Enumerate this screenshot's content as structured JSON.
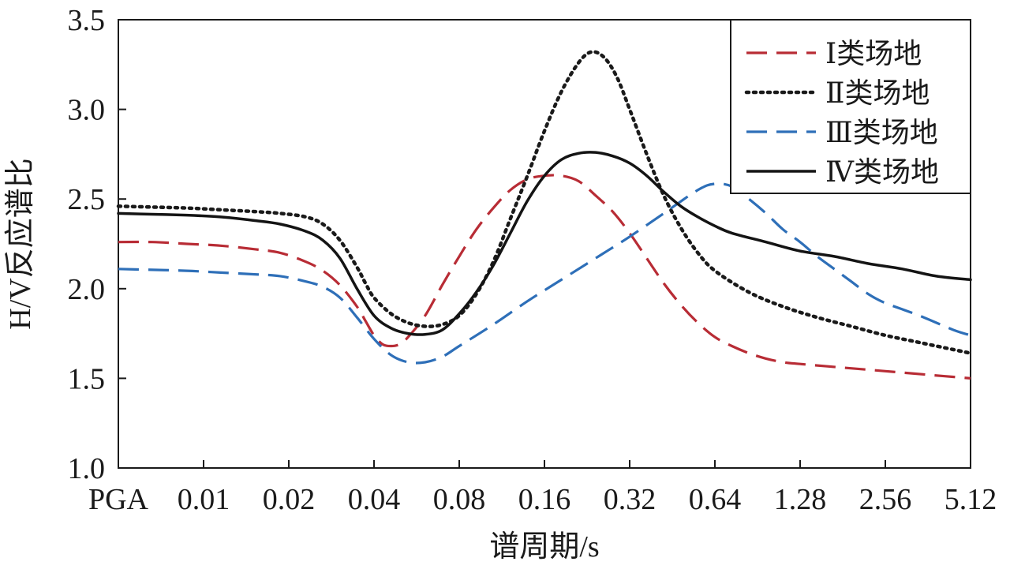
{
  "chart_data": {
    "type": "line",
    "xlabel": "谱周期/s",
    "ylabel": "H/V反应谱比",
    "ylim": [
      1.0,
      3.5
    ],
    "yticks": [
      "1.0",
      "1.5",
      "2.0",
      "2.5",
      "3.0",
      "3.5"
    ],
    "categories": [
      "PGA",
      "0.01",
      "0.02",
      "0.04",
      "0.08",
      "0.16",
      "0.32",
      "0.64",
      "1.28",
      "2.56",
      "5.12"
    ],
    "legend_position": "top-right",
    "grid": false,
    "series": [
      {
        "name": "Ⅰ类场地",
        "color": "#b82c35",
        "style": "dashed",
        "points": [
          [
            0,
            2.26
          ],
          [
            0.4,
            2.26
          ],
          [
            0.8,
            2.25
          ],
          [
            1.2,
            2.24
          ],
          [
            1.6,
            2.22
          ],
          [
            1.9,
            2.2
          ],
          [
            2.2,
            2.15
          ],
          [
            2.4,
            2.1
          ],
          [
            2.6,
            2.02
          ],
          [
            2.8,
            1.9
          ],
          [
            2.9,
            1.82
          ],
          [
            3.0,
            1.74
          ],
          [
            3.1,
            1.69
          ],
          [
            3.2,
            1.68
          ],
          [
            3.3,
            1.69
          ],
          [
            3.4,
            1.73
          ],
          [
            3.6,
            1.85
          ],
          [
            3.8,
            2.02
          ],
          [
            4.0,
            2.18
          ],
          [
            4.2,
            2.33
          ],
          [
            4.4,
            2.45
          ],
          [
            4.6,
            2.55
          ],
          [
            4.8,
            2.61
          ],
          [
            5.0,
            2.63
          ],
          [
            5.2,
            2.63
          ],
          [
            5.4,
            2.6
          ],
          [
            5.6,
            2.52
          ],
          [
            5.8,
            2.43
          ],
          [
            6.0,
            2.31
          ],
          [
            6.2,
            2.17
          ],
          [
            6.4,
            2.03
          ],
          [
            6.6,
            1.91
          ],
          [
            6.8,
            1.81
          ],
          [
            7.0,
            1.73
          ],
          [
            7.2,
            1.68
          ],
          [
            7.4,
            1.64
          ],
          [
            7.6,
            1.61
          ],
          [
            7.8,
            1.59
          ],
          [
            8.0,
            1.58
          ],
          [
            8.5,
            1.56
          ],
          [
            9.0,
            1.54
          ],
          [
            9.5,
            1.52
          ],
          [
            10.0,
            1.5
          ]
        ]
      },
      {
        "name": "Ⅱ类场地",
        "color": "#1a1a1a",
        "style": "dotted",
        "points": [
          [
            0,
            2.46
          ],
          [
            0.4,
            2.455
          ],
          [
            0.8,
            2.45
          ],
          [
            1.2,
            2.44
          ],
          [
            1.6,
            2.43
          ],
          [
            1.9,
            2.42
          ],
          [
            2.2,
            2.4
          ],
          [
            2.4,
            2.36
          ],
          [
            2.6,
            2.27
          ],
          [
            2.8,
            2.12
          ],
          [
            2.9,
            2.03
          ],
          [
            3.0,
            1.95
          ],
          [
            3.2,
            1.86
          ],
          [
            3.4,
            1.81
          ],
          [
            3.6,
            1.79
          ],
          [
            3.8,
            1.8
          ],
          [
            4.0,
            1.85
          ],
          [
            4.2,
            1.97
          ],
          [
            4.4,
            2.15
          ],
          [
            4.6,
            2.39
          ],
          [
            4.8,
            2.63
          ],
          [
            5.0,
            2.88
          ],
          [
            5.2,
            3.1
          ],
          [
            5.4,
            3.26
          ],
          [
            5.55,
            3.32
          ],
          [
            5.7,
            3.29
          ],
          [
            5.85,
            3.18
          ],
          [
            6.0,
            3.0
          ],
          [
            6.2,
            2.75
          ],
          [
            6.4,
            2.52
          ],
          [
            6.6,
            2.34
          ],
          [
            6.8,
            2.2
          ],
          [
            7.0,
            2.1
          ],
          [
            7.4,
            1.98
          ],
          [
            7.8,
            1.9
          ],
          [
            8.2,
            1.84
          ],
          [
            8.6,
            1.79
          ],
          [
            9.0,
            1.74
          ],
          [
            9.4,
            1.7
          ],
          [
            9.8,
            1.66
          ],
          [
            10.0,
            1.64
          ]
        ]
      },
      {
        "name": "Ⅲ类场地",
        "color": "#2e6fb8",
        "style": "dashed",
        "points": [
          [
            0,
            2.11
          ],
          [
            0.4,
            2.105
          ],
          [
            0.8,
            2.1
          ],
          [
            1.2,
            2.09
          ],
          [
            1.6,
            2.08
          ],
          [
            1.9,
            2.07
          ],
          [
            2.2,
            2.04
          ],
          [
            2.4,
            2.01
          ],
          [
            2.6,
            1.95
          ],
          [
            2.8,
            1.84
          ],
          [
            3.0,
            1.72
          ],
          [
            3.2,
            1.63
          ],
          [
            3.4,
            1.59
          ],
          [
            3.6,
            1.59
          ],
          [
            3.8,
            1.62
          ],
          [
            4.0,
            1.68
          ],
          [
            4.4,
            1.8
          ],
          [
            4.8,
            1.93
          ],
          [
            5.2,
            2.05
          ],
          [
            5.6,
            2.17
          ],
          [
            6.0,
            2.29
          ],
          [
            6.4,
            2.42
          ],
          [
            6.8,
            2.55
          ],
          [
            7.0,
            2.585
          ],
          [
            7.2,
            2.57
          ],
          [
            7.4,
            2.5
          ],
          [
            7.6,
            2.42
          ],
          [
            7.8,
            2.33
          ],
          [
            8.0,
            2.26
          ],
          [
            8.2,
            2.18
          ],
          [
            8.4,
            2.11
          ],
          [
            8.6,
            2.04
          ],
          [
            8.8,
            1.97
          ],
          [
            9.0,
            1.92
          ],
          [
            9.4,
            1.85
          ],
          [
            9.8,
            1.77
          ],
          [
            10.0,
            1.74
          ]
        ]
      },
      {
        "name": "Ⅳ类场地",
        "color": "#141414",
        "style": "solid",
        "points": [
          [
            0,
            2.42
          ],
          [
            0.4,
            2.415
          ],
          [
            0.8,
            2.41
          ],
          [
            1.2,
            2.4
          ],
          [
            1.6,
            2.38
          ],
          [
            1.9,
            2.36
          ],
          [
            2.2,
            2.32
          ],
          [
            2.4,
            2.27
          ],
          [
            2.6,
            2.17
          ],
          [
            2.8,
            2.0
          ],
          [
            3.0,
            1.85
          ],
          [
            3.2,
            1.78
          ],
          [
            3.4,
            1.75
          ],
          [
            3.6,
            1.745
          ],
          [
            3.8,
            1.77
          ],
          [
            4.0,
            1.86
          ],
          [
            4.2,
            1.98
          ],
          [
            4.4,
            2.13
          ],
          [
            4.6,
            2.31
          ],
          [
            4.8,
            2.49
          ],
          [
            5.0,
            2.63
          ],
          [
            5.2,
            2.72
          ],
          [
            5.4,
            2.755
          ],
          [
            5.6,
            2.76
          ],
          [
            5.8,
            2.74
          ],
          [
            6.0,
            2.7
          ],
          [
            6.2,
            2.63
          ],
          [
            6.4,
            2.54
          ],
          [
            6.6,
            2.46
          ],
          [
            6.8,
            2.4
          ],
          [
            7.0,
            2.35
          ],
          [
            7.2,
            2.31
          ],
          [
            7.6,
            2.26
          ],
          [
            8.0,
            2.21
          ],
          [
            8.4,
            2.18
          ],
          [
            8.8,
            2.14
          ],
          [
            9.2,
            2.11
          ],
          [
            9.6,
            2.07
          ],
          [
            10.0,
            2.05
          ]
        ]
      }
    ]
  }
}
